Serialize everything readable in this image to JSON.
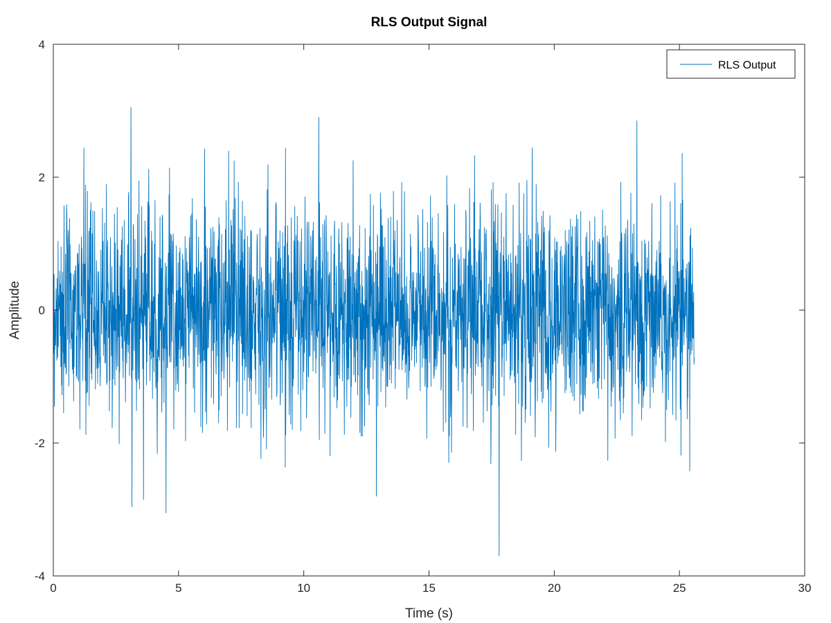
{
  "chart_data": {
    "type": "line",
    "title": "RLS Output Signal",
    "xlabel": "Time (s)",
    "ylabel": "Amplitude",
    "xlim": [
      0,
      30
    ],
    "ylim": [
      -4,
      4
    ],
    "xticks": [
      0,
      5,
      10,
      15,
      20,
      25,
      30
    ],
    "yticks": [
      -4,
      -2,
      0,
      2,
      4
    ],
    "x_tick_labels": [
      "0",
      "5",
      "10",
      "15",
      "20",
      "25",
      "30"
    ],
    "y_tick_labels": [
      "-4",
      "-2",
      "0",
      "2",
      "4"
    ],
    "grid": false,
    "legend": {
      "position": "top-right",
      "entries": [
        "RLS Output"
      ]
    },
    "series": [
      {
        "name": "RLS Output",
        "color": "#0072bd",
        "x_range": [
          0,
          25.6
        ],
        "sample_count": 2560,
        "sample_interval": 0.01,
        "mean": 0.0,
        "std": 0.8,
        "approx_max": 3.05,
        "approx_min": -3.7,
        "notable_peaks": [
          {
            "x": 3.1,
            "y": 3.05
          },
          {
            "x": 10.6,
            "y": 2.9
          },
          {
            "x": 23.3,
            "y": 2.85
          },
          {
            "x": 17.8,
            "y": -3.7
          },
          {
            "x": 4.5,
            "y": -3.05
          },
          {
            "x": 3.6,
            "y": -2.85
          },
          {
            "x": 12.9,
            "y": -2.8
          }
        ]
      }
    ]
  }
}
